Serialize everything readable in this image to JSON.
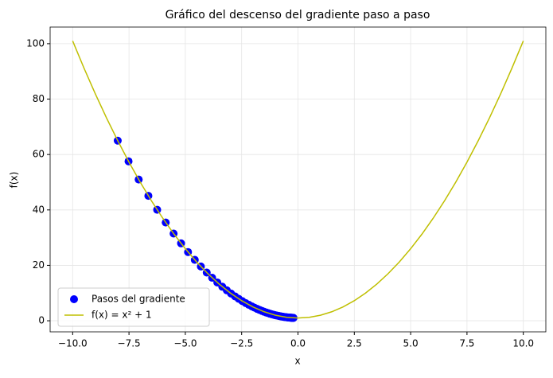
{
  "chart_data": {
    "type": "scatter",
    "title": "Gráfico del descenso del gradiente paso a paso",
    "x_label": "x",
    "y_label": "f(x)",
    "series": [
      {
        "name": "Pasos del gradiente",
        "type": "scatter",
        "color": "#0000ff",
        "x": [
          -8,
          -7.52,
          -7.07,
          -6.64,
          -6.25,
          -5.87,
          -5.52,
          -5.19,
          -4.88,
          -4.58,
          -4.31,
          -4.05,
          -3.81,
          -3.58,
          -3.36,
          -3.16,
          -2.97,
          -2.79,
          -2.63,
          -2.47,
          -2.32,
          -2.18,
          -2.05,
          -1.93,
          -1.81,
          -1.7,
          -1.6,
          -1.51,
          -1.41,
          -1.33,
          -1.25,
          -1.18,
          -1.1,
          -1.04,
          -0.98,
          -0.92,
          -0.86,
          -0.81,
          -0.76,
          -0.72,
          -0.67,
          -0.63,
          -0.59,
          -0.56,
          -0.53,
          -0.49,
          -0.46,
          -0.44,
          -0.41,
          -0.39,
          -0.36,
          -0.34,
          -0.32,
          -0.3,
          -0.28,
          -0.27,
          -0.25,
          -0.24,
          -0.22,
          -0.21,
          -0.2
        ],
        "values": [
          65,
          57.55,
          50.98,
          45.09,
          40.06,
          35.46,
          31.47,
          27.94,
          24.81,
          21.98,
          19.58,
          17.4,
          15.52,
          13.82,
          12.29,
          10.99,
          9.82,
          8.78,
          7.92,
          7.1,
          6.38,
          5.75,
          5.2,
          4.72,
          4.28,
          3.89,
          3.56,
          3.28,
          2.99,
          2.77,
          2.56,
          2.39,
          2.21,
          2.08,
          1.96,
          1.85,
          1.74,
          1.66,
          1.58,
          1.52,
          1.45,
          1.4,
          1.35,
          1.31,
          1.28,
          1.24,
          1.21,
          1.19,
          1.17,
          1.15,
          1.13,
          1.12,
          1.1,
          1.09,
          1.08,
          1.07,
          1.06,
          1.06,
          1.05,
          1.04,
          1.04
        ]
      },
      {
        "name": "f(x) = x² + 1",
        "type": "line",
        "color": "#bfbf00",
        "x": [
          -10,
          -9.5,
          -9,
          -8.5,
          -8,
          -7.5,
          -7,
          -6.5,
          -6,
          -5.5,
          -5,
          -4.5,
          -4,
          -3.5,
          -3,
          -2.5,
          -2,
          -1.5,
          -1,
          -0.5,
          0,
          0.5,
          1,
          1.5,
          2,
          2.5,
          3,
          3.5,
          4,
          4.5,
          5,
          5.5,
          6,
          6.5,
          7,
          7.5,
          8,
          8.5,
          9,
          9.5,
          10
        ],
        "values": [
          101,
          91.25,
          82,
          73.25,
          65,
          57.25,
          50,
          43.25,
          37,
          31.25,
          26,
          21.25,
          17,
          13.25,
          10,
          7.25,
          5,
          3.25,
          2,
          1.25,
          1,
          1.25,
          2,
          3.25,
          5,
          7.25,
          10,
          13.25,
          17,
          21.25,
          26,
          31.25,
          37,
          43.25,
          50,
          57.25,
          65,
          73.25,
          82,
          91.25,
          101
        ]
      }
    ],
    "xlim": [
      -11,
      11
    ],
    "xticks": [
      {
        "value": -10,
        "label": "−10.0"
      },
      {
        "value": -7.5,
        "label": "−7.5"
      },
      {
        "value": -5,
        "label": "−5.0"
      },
      {
        "value": -2.5,
        "label": "−2.5"
      },
      {
        "value": 0,
        "label": "0.0"
      },
      {
        "value": 2.5,
        "label": "2.5"
      },
      {
        "value": 5,
        "label": "5.0"
      },
      {
        "value": 7.5,
        "label": "7.5"
      },
      {
        "value": 10,
        "label": "10.0"
      }
    ],
    "ylim": [
      -4,
      106
    ],
    "yticks": [
      0,
      20,
      40,
      60,
      80,
      100
    ],
    "grid": true,
    "legend": "lower left"
  }
}
